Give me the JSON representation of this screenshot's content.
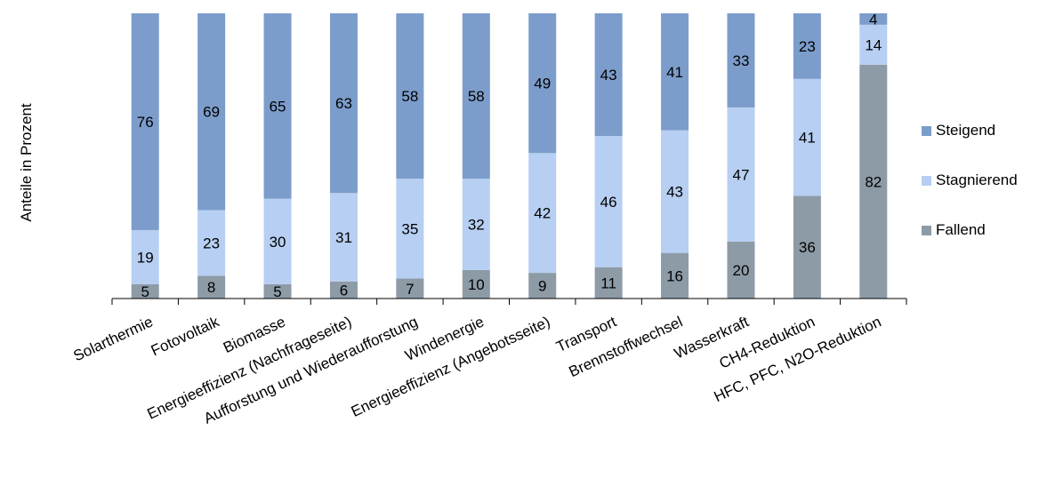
{
  "chart_data": {
    "type": "bar",
    "stacked": true,
    "ylabel": "Anteile in Prozent",
    "categories": [
      "Solarthermie",
      "Fotovoltaik",
      "Biomasse",
      "Energieeffizienz (Nachfrageseite)",
      "Aufforstung und Wiederaufforstung",
      "Windenergie",
      "Energieeffizienz (Angebotsseite)",
      "Transport",
      "Brennstoffwechsel",
      "Wasserkraft",
      "CH4-Reduktion",
      "HFC, PFC, N2O-Reduktion"
    ],
    "series": [
      {
        "name": "Fallend",
        "color": "#8d9ba7",
        "values": [
          5,
          8,
          5,
          6,
          7,
          10,
          9,
          11,
          16,
          20,
          36,
          82
        ]
      },
      {
        "name": "Stagnierend",
        "color": "#b6cff2",
        "values": [
          19,
          23,
          30,
          31,
          35,
          32,
          42,
          46,
          43,
          47,
          41,
          14
        ]
      },
      {
        "name": "Steigend",
        "color": "#7c9dcb",
        "values": [
          76,
          69,
          65,
          63,
          58,
          58,
          49,
          43,
          41,
          33,
          23,
          4
        ]
      }
    ],
    "legend_order": [
      "Steigend",
      "Stagnierend",
      "Fallend"
    ],
    "legend_position": "right",
    "ylim": [
      0,
      100
    ],
    "grid": false
  }
}
